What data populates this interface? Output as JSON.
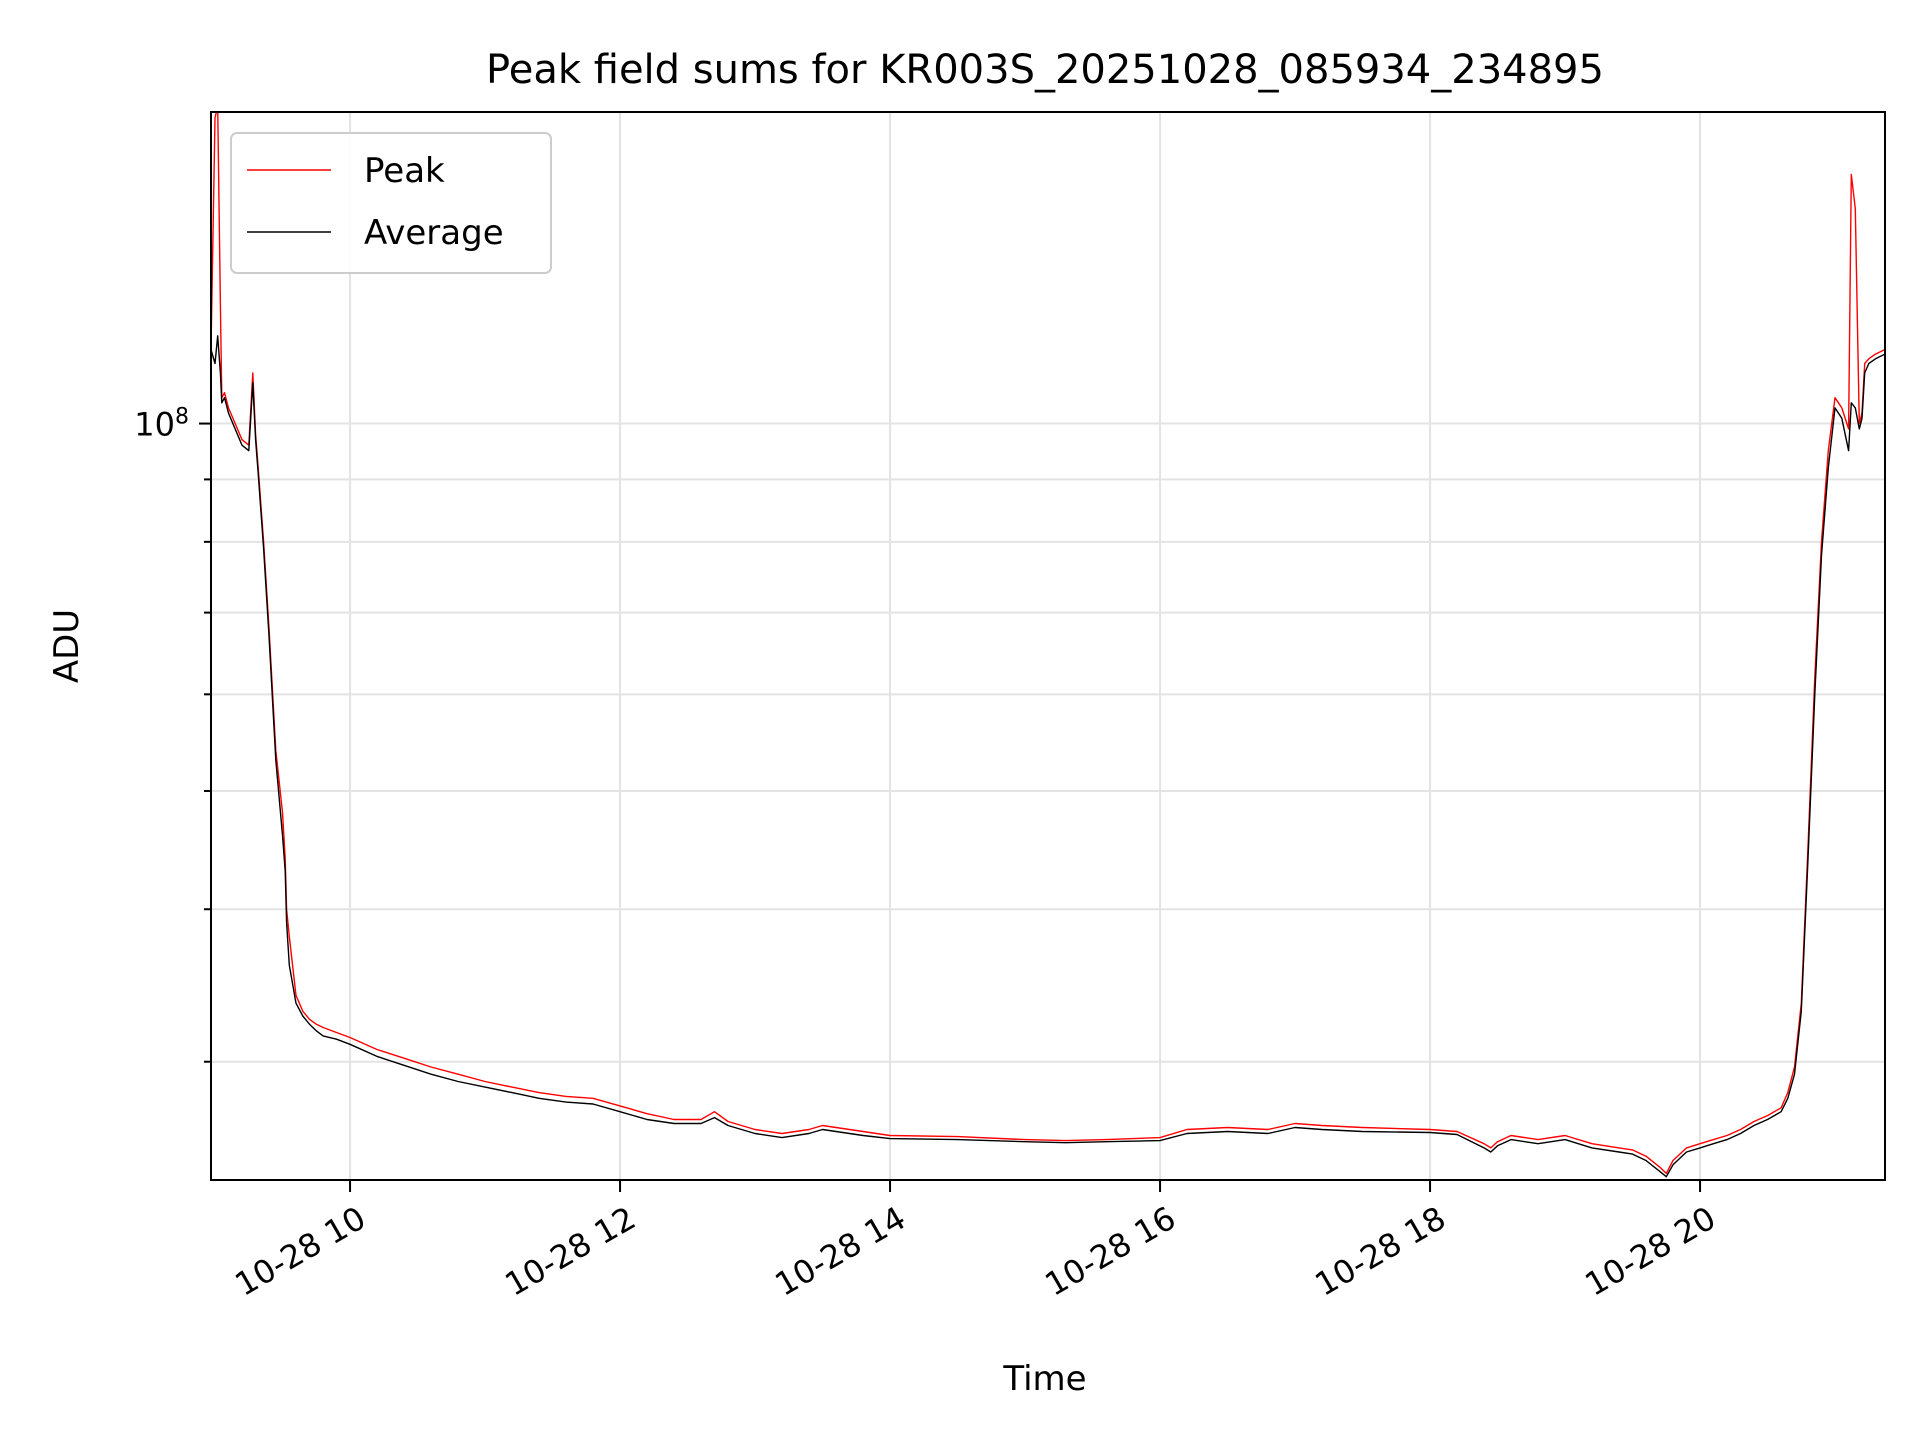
{
  "chart_data": {
    "type": "line",
    "title": "Peak field sums for KR003S_20251028_085934_234895",
    "xlabel": "Time",
    "ylabel": "ADU",
    "x_unit": "hours",
    "xlim": [
      8.97,
      21.37
    ],
    "ylim": [
      24000000,
      180000000
    ],
    "yscale": "log",
    "y_major_tick_label": "10",
    "y_major_tick_exponent": "8",
    "y_major_tick_value": 100000000,
    "y_minor_ticks": [
      30000000,
      40000000,
      50000000,
      60000000,
      70000000,
      80000000,
      90000000
    ],
    "x_ticks": [
      {
        "value": 10,
        "label": "10-28 10"
      },
      {
        "value": 12,
        "label": "10-28 12"
      },
      {
        "value": 14,
        "label": "10-28 14"
      },
      {
        "value": 16,
        "label": "10-28 16"
      },
      {
        "value": 18,
        "label": "10-28 18"
      },
      {
        "value": 20,
        "label": "10-28 20"
      }
    ],
    "grid": true,
    "legend_position": "top-left",
    "series": [
      {
        "name": "Peak",
        "color": "#ff0000",
        "x": [
          8.97,
          9.0,
          9.02,
          9.04,
          9.05,
          9.07,
          9.1,
          9.2,
          9.25,
          9.28,
          9.3,
          9.32,
          9.36,
          9.4,
          9.45,
          9.5,
          9.52,
          9.53,
          9.55,
          9.6,
          9.65,
          9.7,
          9.75,
          9.8,
          9.9,
          10.0,
          10.2,
          10.4,
          10.6,
          10.8,
          11.0,
          11.2,
          11.4,
          11.6,
          11.8,
          12.0,
          12.2,
          12.4,
          12.6,
          12.7,
          12.8,
          13.0,
          13.2,
          13.4,
          13.5,
          13.6,
          13.8,
          14.0,
          14.5,
          15.0,
          15.3,
          15.6,
          16.0,
          16.2,
          16.5,
          16.8,
          17.0,
          17.2,
          17.5,
          18.0,
          18.2,
          18.4,
          18.45,
          18.5,
          18.6,
          18.8,
          19.0,
          19.2,
          19.4,
          19.5,
          19.6,
          19.7,
          19.75,
          19.8,
          19.9,
          20.0,
          20.1,
          20.2,
          20.3,
          20.4,
          20.5,
          20.6,
          20.65,
          20.7,
          20.75,
          20.8,
          20.85,
          20.9,
          20.95,
          21.0,
          21.05,
          21.1,
          21.12,
          21.15,
          21.18,
          21.2,
          21.22,
          21.25,
          21.3,
          21.37
        ],
        "values": [
          115000000,
          178000000,
          182000000,
          125000000,
          105000000,
          106000000,
          103000000,
          97000000,
          96000000,
          110000000,
          98000000,
          92000000,
          80000000,
          68000000,
          54000000,
          48000000,
          44000000,
          40000000,
          38000000,
          34000000,
          33000000,
          32500000,
          32200000,
          32000000,
          31700000,
          31400000,
          30700000,
          30200000,
          29700000,
          29300000,
          28900000,
          28600000,
          28300000,
          28100000,
          28000000,
          27600000,
          27200000,
          26900000,
          26900000,
          27300000,
          26800000,
          26400000,
          26200000,
          26400000,
          26600000,
          26500000,
          26300000,
          26100000,
          26050000,
          25900000,
          25850000,
          25900000,
          26000000,
          26400000,
          26500000,
          26400000,
          26700000,
          26600000,
          26500000,
          26400000,
          26300000,
          25700000,
          25500000,
          25800000,
          26100000,
          25900000,
          26100000,
          25700000,
          25500000,
          25400000,
          25100000,
          24600000,
          24300000,
          24900000,
          25500000,
          25700000,
          25900000,
          26100000,
          26400000,
          26800000,
          27100000,
          27500000,
          28300000,
          29700000,
          33500000,
          45000000,
          62000000,
          80000000,
          95000000,
          105000000,
          103000000,
          99000000,
          160000000,
          150000000,
          100000000,
          102000000,
          112000000,
          113000000,
          114000000,
          115000000
        ]
      },
      {
        "name": "Average",
        "color": "#000000",
        "x": [
          8.97,
          9.0,
          9.02,
          9.04,
          9.05,
          9.07,
          9.1,
          9.2,
          9.25,
          9.28,
          9.3,
          9.32,
          9.36,
          9.4,
          9.45,
          9.5,
          9.52,
          9.53,
          9.55,
          9.6,
          9.65,
          9.7,
          9.75,
          9.8,
          9.9,
          10.0,
          10.2,
          10.4,
          10.6,
          10.8,
          11.0,
          11.2,
          11.4,
          11.6,
          11.8,
          12.0,
          12.2,
          12.4,
          12.6,
          12.7,
          12.8,
          13.0,
          13.2,
          13.4,
          13.5,
          13.6,
          13.8,
          14.0,
          14.5,
          15.0,
          15.3,
          15.6,
          16.0,
          16.2,
          16.5,
          16.8,
          17.0,
          17.2,
          17.5,
          18.0,
          18.2,
          18.4,
          18.45,
          18.5,
          18.6,
          18.8,
          19.0,
          19.2,
          19.4,
          19.5,
          19.6,
          19.7,
          19.75,
          19.8,
          19.9,
          20.0,
          20.1,
          20.2,
          20.3,
          20.4,
          20.5,
          20.6,
          20.65,
          20.7,
          20.75,
          20.8,
          20.85,
          20.9,
          20.95,
          21.0,
          21.05,
          21.1,
          21.12,
          21.15,
          21.18,
          21.2,
          21.22,
          21.25,
          21.3,
          21.37
        ],
        "values": [
          115000000,
          112000000,
          118000000,
          110000000,
          104000000,
          105000000,
          102000000,
          96000000,
          95000000,
          108000000,
          97000000,
          91000000,
          79000000,
          67000000,
          53000000,
          46000000,
          43000000,
          39000000,
          36000000,
          33500000,
          32700000,
          32200000,
          31800000,
          31500000,
          31300000,
          31000000,
          30300000,
          29800000,
          29300000,
          28900000,
          28600000,
          28300000,
          28000000,
          27800000,
          27700000,
          27300000,
          26900000,
          26700000,
          26700000,
          27000000,
          26600000,
          26200000,
          26000000,
          26200000,
          26400000,
          26300000,
          26100000,
          25950000,
          25900000,
          25800000,
          25750000,
          25800000,
          25850000,
          26200000,
          26300000,
          26200000,
          26500000,
          26400000,
          26300000,
          26250000,
          26150000,
          25500000,
          25300000,
          25600000,
          25900000,
          25700000,
          25900000,
          25500000,
          25300000,
          25200000,
          24900000,
          24400000,
          24150000,
          24700000,
          25300000,
          25500000,
          25700000,
          25900000,
          26200000,
          26600000,
          26900000,
          27300000,
          28000000,
          29300000,
          33000000,
          44000000,
          60000000,
          78000000,
          92000000,
          103000000,
          101000000,
          95000000,
          104000000,
          103000000,
          99000000,
          101000000,
          110000000,
          112000000,
          113000000,
          114000000
        ]
      }
    ]
  }
}
